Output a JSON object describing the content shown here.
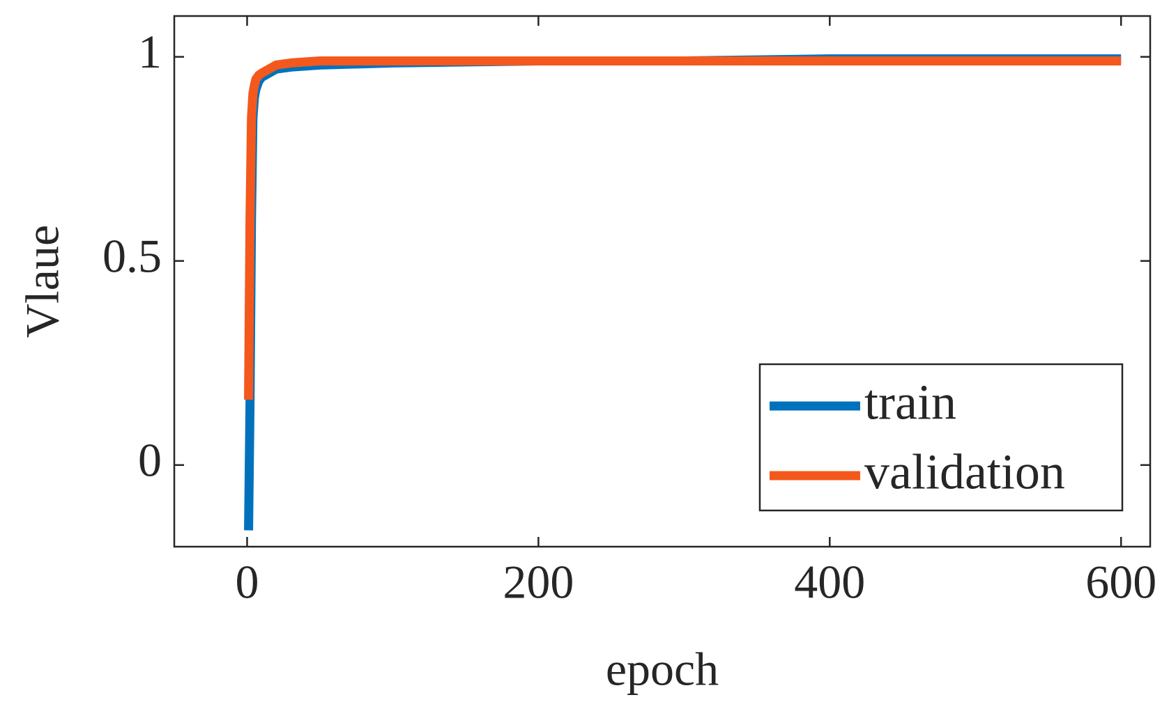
{
  "chart_data": {
    "type": "line",
    "x_label": "epoch",
    "y_label": "Vlaue",
    "x": [
      1,
      2,
      3,
      4,
      5,
      6,
      8,
      10,
      15,
      20,
      30,
      50,
      100,
      200,
      300,
      400,
      500,
      600
    ],
    "series": [
      {
        "name": "train",
        "color": "#0072bd",
        "values": [
          -0.16,
          0.15,
          0.6,
          0.85,
          0.9,
          0.92,
          0.94,
          0.95,
          0.96,
          0.97,
          0.975,
          0.98,
          0.985,
          0.99,
          0.99,
          0.995,
          0.995,
          0.995
        ]
      },
      {
        "name": "validation",
        "color": "#f4581c",
        "values": [
          0.16,
          0.6,
          0.85,
          0.91,
          0.93,
          0.945,
          0.955,
          0.96,
          0.97,
          0.98,
          0.985,
          0.99,
          0.99,
          0.99,
          0.99,
          0.99,
          0.99,
          0.99
        ]
      }
    ],
    "xlim": [
      -50,
      620
    ],
    "ylim": [
      -0.2,
      1.1
    ],
    "xticks": [
      0,
      200,
      400,
      600
    ],
    "yticks": [
      0,
      0.5,
      1
    ],
    "grid": false,
    "legend": "lower right"
  }
}
